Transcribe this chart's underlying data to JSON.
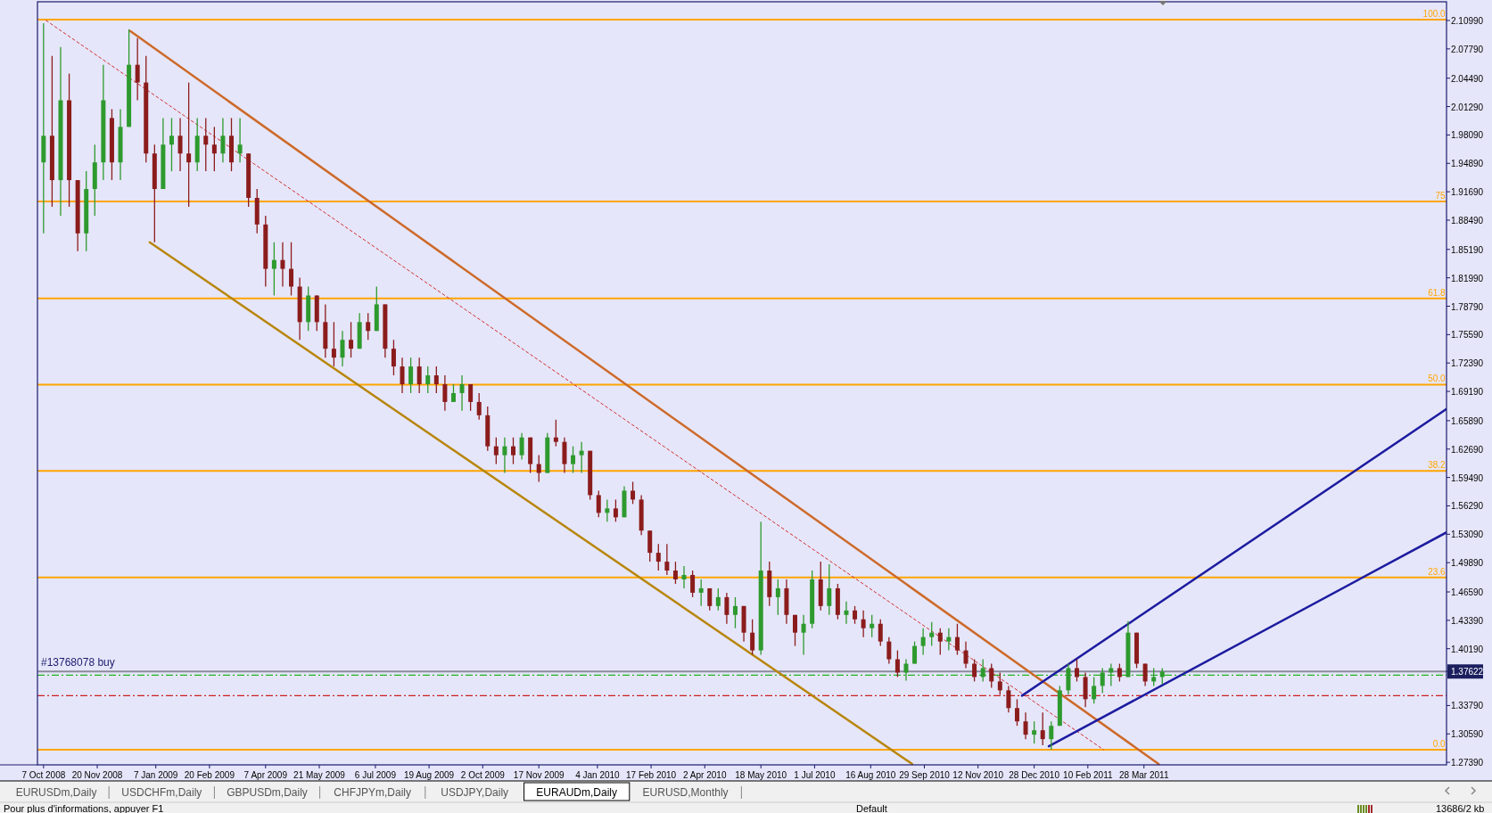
{
  "chart_data": {
    "type": "candlestick",
    "x": [
      "2008-10-07",
      "2008-10-14",
      "2008-10-21",
      "2008-10-28",
      "2008-11-04",
      "2008-11-11",
      "2008-11-18",
      "2008-11-25",
      "2008-12-02",
      "2008-12-09",
      "2008-12-16",
      "2008-12-23",
      "2008-12-30",
      "2009-01-06",
      "2009-01-13",
      "2009-01-20",
      "2009-01-27",
      "2009-02-03",
      "2009-02-10",
      "2009-02-17",
      "2009-02-24",
      "2009-03-03",
      "2009-03-10",
      "2009-03-17",
      "2009-03-24",
      "2009-03-31",
      "2009-04-07",
      "2009-04-14",
      "2009-04-21",
      "2009-04-28",
      "2009-05-05",
      "2009-05-12",
      "2009-05-19",
      "2009-05-26",
      "2009-06-02",
      "2009-06-09",
      "2009-06-16",
      "2009-06-23",
      "2009-06-30",
      "2009-07-07",
      "2009-07-14",
      "2009-07-21",
      "2009-07-28",
      "2009-08-04",
      "2009-08-11",
      "2009-08-18",
      "2009-08-25",
      "2009-09-01",
      "2009-09-08",
      "2009-09-15",
      "2009-09-22",
      "2009-09-29",
      "2009-10-06",
      "2009-10-13",
      "2009-10-20",
      "2009-10-27",
      "2009-11-03",
      "2009-11-10",
      "2009-11-17",
      "2009-11-24",
      "2009-12-01",
      "2009-12-08",
      "2009-12-15",
      "2009-12-22",
      "2009-12-29",
      "2010-01-05",
      "2010-01-12",
      "2010-01-19",
      "2010-01-26",
      "2010-02-02",
      "2010-02-09",
      "2010-02-16",
      "2010-02-23",
      "2010-03-02",
      "2010-03-09",
      "2010-03-16",
      "2010-03-23",
      "2010-03-30",
      "2010-04-06",
      "2010-04-13",
      "2010-04-20",
      "2010-04-27",
      "2010-05-04",
      "2010-05-11",
      "2010-05-18",
      "2010-05-25",
      "2010-06-01",
      "2010-06-08",
      "2010-06-15",
      "2010-06-22",
      "2010-06-29",
      "2010-07-06",
      "2010-07-13",
      "2010-07-20",
      "2010-07-27",
      "2010-08-03",
      "2010-08-10",
      "2010-08-17",
      "2010-08-24",
      "2010-08-31",
      "2010-09-07",
      "2010-09-14",
      "2010-09-21",
      "2010-09-28",
      "2010-10-05",
      "2010-10-12",
      "2010-10-19",
      "2010-10-26",
      "2010-11-02",
      "2010-11-09",
      "2010-11-16",
      "2010-11-23",
      "2010-11-30",
      "2010-12-07",
      "2010-12-14",
      "2010-12-21",
      "2010-12-28",
      "2011-01-04",
      "2011-01-11",
      "2011-01-18",
      "2011-01-25",
      "2011-02-01",
      "2011-02-08",
      "2011-02-15",
      "2011-02-22",
      "2011-03-01",
      "2011-03-08",
      "2011-03-15",
      "2011-03-22",
      "2011-03-29",
      "2011-04-05",
      "2011-04-12"
    ],
    "ohlc": [
      [
        1.95,
        2.107,
        1.87,
        1.98
      ],
      [
        1.98,
        2.07,
        1.9,
        1.93
      ],
      [
        1.93,
        2.08,
        1.89,
        2.02
      ],
      [
        2.02,
        2.05,
        1.9,
        1.93
      ],
      [
        1.93,
        1.93,
        1.85,
        1.87
      ],
      [
        1.87,
        1.94,
        1.85,
        1.92
      ],
      [
        1.92,
        1.97,
        1.89,
        1.95
      ],
      [
        1.95,
        2.06,
        1.93,
        2.02
      ],
      [
        2.0,
        2.01,
        1.93,
        1.95
      ],
      [
        1.95,
        2.01,
        1.93,
        1.99
      ],
      [
        1.99,
        2.1,
        1.99,
        2.06
      ],
      [
        2.06,
        2.09,
        2.02,
        2.04
      ],
      [
        2.04,
        2.07,
        1.95,
        1.96
      ],
      [
        1.96,
        1.97,
        1.86,
        1.92
      ],
      [
        1.92,
        2.0,
        1.92,
        1.97
      ],
      [
        1.97,
        2.0,
        1.94,
        1.98
      ],
      [
        1.98,
        2.0,
        1.94,
        1.96
      ],
      [
        1.96,
        2.04,
        1.9,
        1.95
      ],
      [
        1.95,
        2.0,
        1.94,
        1.98
      ],
      [
        1.98,
        2.0,
        1.94,
        1.97
      ],
      [
        1.97,
        1.99,
        1.94,
        1.96
      ],
      [
        1.96,
        2.0,
        1.95,
        1.98
      ],
      [
        1.98,
        2.0,
        1.94,
        1.95
      ],
      [
        1.96,
        2.0,
        1.95,
        1.97
      ],
      [
        1.96,
        1.96,
        1.9,
        1.91
      ],
      [
        1.91,
        1.92,
        1.87,
        1.88
      ],
      [
        1.88,
        1.89,
        1.81,
        1.83
      ],
      [
        1.83,
        1.86,
        1.8,
        1.84
      ],
      [
        1.84,
        1.86,
        1.81,
        1.83
      ],
      [
        1.83,
        1.86,
        1.8,
        1.81
      ],
      [
        1.81,
        1.82,
        1.75,
        1.77
      ],
      [
        1.77,
        1.81,
        1.76,
        1.8
      ],
      [
        1.8,
        1.8,
        1.76,
        1.77
      ],
      [
        1.77,
        1.79,
        1.73,
        1.74
      ],
      [
        1.74,
        1.77,
        1.72,
        1.73
      ],
      [
        1.73,
        1.76,
        1.72,
        1.75
      ],
      [
        1.75,
        1.77,
        1.73,
        1.74
      ],
      [
        1.74,
        1.78,
        1.74,
        1.77
      ],
      [
        1.77,
        1.78,
        1.75,
        1.76
      ],
      [
        1.76,
        1.81,
        1.76,
        1.79
      ],
      [
        1.79,
        1.79,
        1.73,
        1.74
      ],
      [
        1.74,
        1.75,
        1.71,
        1.72
      ],
      [
        1.72,
        1.73,
        1.69,
        1.7
      ],
      [
        1.7,
        1.73,
        1.69,
        1.72
      ],
      [
        1.72,
        1.73,
        1.69,
        1.7
      ],
      [
        1.7,
        1.72,
        1.69,
        1.71
      ],
      [
        1.71,
        1.72,
        1.69,
        1.7
      ],
      [
        1.7,
        1.71,
        1.67,
        1.68
      ],
      [
        1.68,
        1.7,
        1.68,
        1.69
      ],
      [
        1.69,
        1.71,
        1.67,
        1.7
      ],
      [
        1.7,
        1.7,
        1.67,
        1.68
      ],
      [
        1.68,
        1.69,
        1.66,
        1.665
      ],
      [
        1.665,
        1.675,
        1.625,
        1.63
      ],
      [
        1.63,
        1.64,
        1.61,
        1.62
      ],
      [
        1.62,
        1.64,
        1.6,
        1.63
      ],
      [
        1.63,
        1.64,
        1.61,
        1.62
      ],
      [
        1.62,
        1.645,
        1.615,
        1.64
      ],
      [
        1.64,
        1.64,
        1.6,
        1.61
      ],
      [
        1.61,
        1.62,
        1.59,
        1.6
      ],
      [
        1.6,
        1.645,
        1.6,
        1.64
      ],
      [
        1.64,
        1.66,
        1.63,
        1.635
      ],
      [
        1.635,
        1.64,
        1.6,
        1.61
      ],
      [
        1.61,
        1.63,
        1.6,
        1.62
      ],
      [
        1.62,
        1.635,
        1.6,
        1.625
      ],
      [
        1.625,
        1.625,
        1.57,
        1.575
      ],
      [
        1.575,
        1.58,
        1.55,
        1.555
      ],
      [
        1.555,
        1.57,
        1.545,
        1.56
      ],
      [
        1.56,
        1.57,
        1.545,
        1.55
      ],
      [
        1.55,
        1.585,
        1.55,
        1.58
      ],
      [
        1.58,
        1.59,
        1.565,
        1.57
      ],
      [
        1.57,
        1.575,
        1.53,
        1.535
      ],
      [
        1.535,
        1.535,
        1.5,
        1.51
      ],
      [
        1.51,
        1.52,
        1.49,
        1.5
      ],
      [
        1.5,
        1.52,
        1.485,
        1.49
      ],
      [
        1.49,
        1.5,
        1.475,
        1.48
      ],
      [
        1.48,
        1.495,
        1.47,
        1.485
      ],
      [
        1.485,
        1.49,
        1.46,
        1.465
      ],
      [
        1.465,
        1.48,
        1.45,
        1.47
      ],
      [
        1.47,
        1.47,
        1.445,
        1.45
      ],
      [
        1.45,
        1.47,
        1.445,
        1.46
      ],
      [
        1.46,
        1.465,
        1.43,
        1.44
      ],
      [
        1.44,
        1.46,
        1.425,
        1.45
      ],
      [
        1.45,
        1.45,
        1.41,
        1.42
      ],
      [
        1.42,
        1.435,
        1.395,
        1.4
      ],
      [
        1.4,
        1.545,
        1.395,
        1.49
      ],
      [
        1.49,
        1.5,
        1.45,
        1.46
      ],
      [
        1.46,
        1.48,
        1.44,
        1.47
      ],
      [
        1.47,
        1.48,
        1.43,
        1.44
      ],
      [
        1.44,
        1.44,
        1.405,
        1.42
      ],
      [
        1.42,
        1.44,
        1.395,
        1.43
      ],
      [
        1.43,
        1.49,
        1.425,
        1.48
      ],
      [
        1.48,
        1.5,
        1.445,
        1.45
      ],
      [
        1.45,
        1.497,
        1.44,
        1.47
      ],
      [
        1.47,
        1.475,
        1.435,
        1.44
      ],
      [
        1.44,
        1.455,
        1.43,
        1.445
      ],
      [
        1.445,
        1.45,
        1.43,
        1.435
      ],
      [
        1.435,
        1.445,
        1.415,
        1.425
      ],
      [
        1.425,
        1.44,
        1.415,
        1.43
      ],
      [
        1.43,
        1.435,
        1.405,
        1.41
      ],
      [
        1.41,
        1.415,
        1.385,
        1.39
      ],
      [
        1.39,
        1.4,
        1.37,
        1.375
      ],
      [
        1.375,
        1.39,
        1.366,
        1.385
      ],
      [
        1.385,
        1.41,
        1.385,
        1.405
      ],
      [
        1.405,
        1.425,
        1.395,
        1.415
      ],
      [
        1.415,
        1.432,
        1.405,
        1.42
      ],
      [
        1.42,
        1.425,
        1.395,
        1.41
      ],
      [
        1.41,
        1.425,
        1.4,
        1.415
      ],
      [
        1.415,
        1.43,
        1.395,
        1.4
      ],
      [
        1.4,
        1.41,
        1.38,
        1.385
      ],
      [
        1.385,
        1.39,
        1.365,
        1.37
      ],
      [
        1.37,
        1.39,
        1.365,
        1.38
      ],
      [
        1.38,
        1.385,
        1.358,
        1.365
      ],
      [
        1.365,
        1.375,
        1.35,
        1.355
      ],
      [
        1.355,
        1.36,
        1.33,
        1.335
      ],
      [
        1.335,
        1.345,
        1.315,
        1.32
      ],
      [
        1.32,
        1.33,
        1.3,
        1.305
      ],
      [
        1.305,
        1.32,
        1.295,
        1.31
      ],
      [
        1.31,
        1.33,
        1.293,
        1.3
      ],
      [
        1.3,
        1.32,
        1.288,
        1.315
      ],
      [
        1.315,
        1.36,
        1.315,
        1.355
      ],
      [
        1.355,
        1.385,
        1.35,
        1.38
      ],
      [
        1.38,
        1.39,
        1.365,
        1.37
      ],
      [
        1.37,
        1.375,
        1.336,
        1.345
      ],
      [
        1.345,
        1.37,
        1.34,
        1.36
      ],
      [
        1.36,
        1.38,
        1.352,
        1.375
      ],
      [
        1.375,
        1.385,
        1.36,
        1.38
      ],
      [
        1.38,
        1.385,
        1.365,
        1.37
      ],
      [
        1.37,
        1.433,
        1.37,
        1.42
      ],
      [
        1.42,
        1.42,
        1.38,
        1.385
      ],
      [
        1.385,
        1.385,
        1.36,
        1.365
      ],
      [
        1.365,
        1.38,
        1.36,
        1.37
      ],
      [
        1.37,
        1.38,
        1.362,
        1.376
      ]
    ],
    "series": [
      {
        "type": "line",
        "color": "#cd6a2a",
        "x": [
          "2008-12-17",
          "2011-04-09"
        ],
        "values": [
          2.098,
          1.272
        ]
      },
      {
        "type": "line",
        "color": "#b8860b",
        "x": [
          "2009-01-02",
          "2010-09-19"
        ],
        "values": [
          1.86,
          1.272
        ]
      },
      {
        "type": "line",
        "color": "#d03030",
        "line_style": "dotted",
        "x": [
          "2008-10-09",
          "2011-02-23"
        ],
        "values": [
          2.11,
          1.288
        ]
      },
      {
        "type": "line",
        "color": "#1c1ca0",
        "x": [
          "2010-12-18",
          "2011-12-01"
        ],
        "values": [
          1.349,
          1.672
        ]
      },
      {
        "type": "line",
        "color": "#1c1ca0",
        "x": [
          "2011-01-09",
          "2011-12-01"
        ],
        "values": [
          1.292,
          1.533
        ]
      }
    ],
    "ref_lines": [
      {
        "axis": "y",
        "value": 2.111,
        "color": "#ffa500"
      },
      {
        "axis": "y",
        "value": 1.906,
        "color": "#ffa500"
      },
      {
        "axis": "y",
        "value": 1.7966,
        "color": "#ffa500"
      },
      {
        "axis": "y",
        "value": 1.6995,
        "color": "#ffa500"
      },
      {
        "axis": "y",
        "value": 1.6024,
        "color": "#ffa500"
      },
      {
        "axis": "y",
        "value": 1.4822,
        "color": "#ffa500"
      },
      {
        "axis": "y",
        "value": 1.288,
        "color": "#ffa500"
      },
      {
        "axis": "y",
        "value": 1.37622,
        "color": "#8a8a9a"
      },
      {
        "axis": "y",
        "value": 1.372,
        "label": "#13768078 buy",
        "color": "#22b422",
        "line_style": "dashed"
      },
      {
        "axis": "y",
        "value": 1.349,
        "color": "#cc2020",
        "line_style": "dashed"
      }
    ],
    "xlim": [
      "2008-10-02",
      "2011-12-01"
    ],
    "ylim": [
      1.271,
      2.131
    ],
    "xticks": [
      {
        "value": "2008-10-07",
        "label": "7 Oct 2008"
      },
      {
        "value": "2008-11-20",
        "label": "20 Nov 2008"
      },
      {
        "value": "2009-01-07",
        "label": "7 Jan 2009"
      },
      {
        "value": "2009-02-20",
        "label": "20 Feb 2009"
      },
      {
        "value": "2009-04-07",
        "label": "7 Apr 2009"
      },
      {
        "value": "2009-05-21",
        "label": "21 May 2009"
      },
      {
        "value": "2009-07-06",
        "label": "6 Jul 2009"
      },
      {
        "value": "2009-08-19",
        "label": "19 Aug 2009"
      },
      {
        "value": "2009-10-02",
        "label": "2 Oct 2009"
      },
      {
        "value": "2009-11-17",
        "label": "17 Nov 2009"
      },
      {
        "value": "2010-01-04",
        "label": "4 Jan 2010"
      },
      {
        "value": "2010-02-17",
        "label": "17 Feb 2010"
      },
      {
        "value": "2010-04-02",
        "label": "2 Apr 2010"
      },
      {
        "value": "2010-05-18",
        "label": "18 May 2010"
      },
      {
        "value": "2010-07-01",
        "label": "1 Jul 2010"
      },
      {
        "value": "2010-08-16",
        "label": "16 Aug 2010"
      },
      {
        "value": "2010-09-29",
        "label": "29 Sep 2010"
      },
      {
        "value": "2010-11-12",
        "label": "12 Nov 2010"
      },
      {
        "value": "2010-12-28",
        "label": "28 Dec 2010"
      },
      {
        "value": "2011-02-10",
        "label": "10 Feb 2011"
      },
      {
        "value": "2011-03-28",
        "label": "28 Mar 2011"
      }
    ],
    "yticks": [
      {
        "value": 2.1099,
        "label": "2.10990"
      },
      {
        "value": 2.0779,
        "label": "2.07790"
      },
      {
        "value": 2.0449,
        "label": "2.04490"
      },
      {
        "value": 2.0129,
        "label": "2.01290"
      },
      {
        "value": 1.9809,
        "label": "1.98090"
      },
      {
        "value": 1.9489,
        "label": "1.94890"
      },
      {
        "value": 1.9169,
        "label": "1.91690"
      },
      {
        "value": 1.8849,
        "label": "1.88490"
      },
      {
        "value": 1.8519,
        "label": "1.85190"
      },
      {
        "value": 1.8199,
        "label": "1.81990"
      },
      {
        "value": 1.7879,
        "label": "1.78790"
      },
      {
        "value": 1.7559,
        "label": "1.75590"
      },
      {
        "value": 1.7239,
        "label": "1.72390"
      },
      {
        "value": 1.6919,
        "label": "1.69190"
      },
      {
        "value": 1.6589,
        "label": "1.65890"
      },
      {
        "value": 1.6269,
        "label": "1.62690"
      },
      {
        "value": 1.5949,
        "label": "1.59490"
      },
      {
        "value": 1.5629,
        "label": "1.56290"
      },
      {
        "value": 1.5309,
        "label": "1.53090"
      },
      {
        "value": 1.4989,
        "label": "1.49890"
      },
      {
        "value": 1.4659,
        "label": "1.46590"
      },
      {
        "value": 1.4339,
        "label": "1.43390"
      },
      {
        "value": 1.4019,
        "label": "1.40190"
      },
      {
        "value": 1.37622,
        "label": "1.37622"
      },
      {
        "value": 1.3379,
        "label": "1.33790"
      },
      {
        "value": 1.3059,
        "label": "1.30590"
      },
      {
        "value": 1.2739,
        "label": "1.27390"
      }
    ],
    "annotations": [
      {
        "text": "100.0",
        "x": "2011-11-30",
        "y": 2.111
      },
      {
        "text": "75",
        "x": "2011-11-30",
        "y": 1.906
      },
      {
        "text": "61.8",
        "x": "2011-11-30",
        "y": 1.7966
      },
      {
        "text": "50.0",
        "x": "2011-11-30",
        "y": 1.6995
      },
      {
        "text": "38.2",
        "x": "2011-11-30",
        "y": 1.6024
      },
      {
        "text": "23.6",
        "x": "2011-11-30",
        "y": 1.4822
      },
      {
        "text": "0.0",
        "x": "2011-11-30",
        "y": 1.288
      },
      "EURUSDm,Daily",
      "USDCHFm,Daily",
      "GBPUSDm,Daily",
      "CHFJPYm,Daily",
      "USDJPY,Daily",
      "EURAUDm,Daily",
      "EURUSD,Monthly",
      "Pour plus d'informations, appuyer F1",
      "Default",
      "13686/2 kb"
    ]
  }
}
